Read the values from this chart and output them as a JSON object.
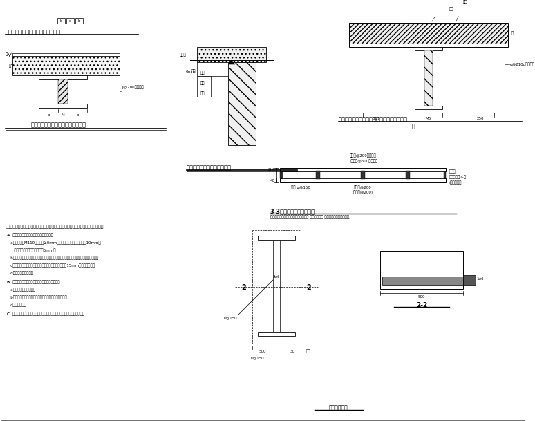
{
  "bg_color": "#ffffff",
  "lc": "#000000",
  "texts": {
    "top_title1": "钢筋网水泥砂浆面层混凝土楼板做法",
    "bottom_title1": "钢筋网水泥砂浆面层混凝土楼面做法",
    "title2": "防层底层在室外墙面下的做法",
    "title3": "钢筋网水泥砂浆面层与内墙墙交界处做法大样",
    "sub3": "预埋",
    "title4": "3-3水泥砂浆面层节面加图",
    "sub4": "(个别墙体在施工中双面加固都已施工时,采用单面有图,详面需示大图规范约说明)",
    "title5": "留洞处做大样",
    "label_2_2": "2-2",
    "notes_header": "图中钢筋网在边缘告知的构件采用双面钢筋网水泥砂浆合缝做，具体做做规范过如下：",
    "notes": [
      "A. 钢筋网水泥砂浆面层应注意如以下几点：",
      "   a、水泥砂浆M110面层厚度≥0mm，钢筋间修外露厚度不于小于10mm，",
      "      钢筋网片与墙面间空隙不小于5mm。",
      "   b、为保证功固层与墙面能可靠连接，对墙面周有有面积化，能使干不够钢筋层长条穿等",
      "   c、水泥砂浆钻孔区域应至深面刷毛走，电刷数不大于于15mm，更具及其都有",
      "   d、清水做面前板次序",
      "B. 对于有钢筋基础基础应遵循以下面层需要参要：",
      "   a、整理遗弃箱及外充，",
      "   b、钢筋网水泥砂浆到打成刷混凝土主基板的面层及穿栏",
      "   c、弄为洗架。",
      "C. 着面洞浆用电组加固，穿插连接穿管出出，水系用导体机架结构架文文。"
    ]
  }
}
